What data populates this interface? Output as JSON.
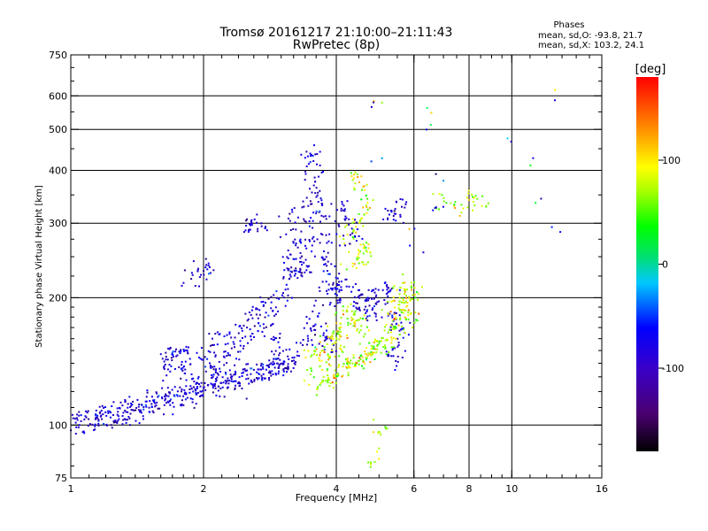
{
  "chart_data": {
    "type": "scatter",
    "title": "Tromsø 20161217 21:10:00–21:11:43",
    "subtitle": "RwPretec (8p)",
    "xlabel": "Frequency [MHz]",
    "ylabel": "Stationary phase Virtual Height [km]",
    "x_scale": "log2",
    "y_scale": "log",
    "xlim": [
      1,
      16
    ],
    "ylim": [
      75,
      750
    ],
    "x_ticks": [
      1,
      2,
      4,
      6,
      8,
      10,
      16
    ],
    "y_ticks": [
      75,
      100,
      200,
      300,
      400,
      500,
      600,
      750
    ],
    "x_gridlines": [
      2,
      4,
      6,
      8,
      10
    ],
    "y_gridlines": [
      100,
      200,
      300,
      400,
      500,
      600
    ],
    "grid": true,
    "stats": {
      "heading": "Phases",
      "line_o": "mean, sd,O: -93.8, 21.7",
      "line_x": "mean, sd,X: 103.2, 24.1"
    },
    "colorbar": {
      "label": "[deg]",
      "min": -180,
      "max": 180,
      "ticks": [
        -100,
        0,
        100
      ],
      "colormap": "rainbow: black-purple-blue-cyan-green-yellow-orange-red"
    },
    "series": [
      {
        "mode": "O",
        "phase_mean": -93.8,
        "phase_sd": 21.7,
        "color": "#2424e0",
        "points": [
          [
            1.02,
            101
          ],
          [
            1.05,
            104
          ],
          [
            1.08,
            99
          ],
          [
            1.1,
            106
          ],
          [
            1.13,
            103
          ],
          [
            1.16,
            101
          ],
          [
            1.19,
            108
          ],
          [
            1.22,
            104
          ],
          [
            1.25,
            102
          ],
          [
            1.28,
            110
          ],
          [
            1.31,
            106
          ],
          [
            1.34,
            104
          ],
          [
            1.37,
            112
          ],
          [
            1.4,
            107
          ],
          [
            1.44,
            109
          ],
          [
            1.48,
            111
          ],
          [
            1.52,
            114
          ],
          [
            1.56,
            110
          ],
          [
            1.6,
            116
          ],
          [
            1.64,
            112
          ],
          [
            1.68,
            118
          ],
          [
            1.72,
            114
          ],
          [
            1.76,
            117
          ],
          [
            1.8,
            121
          ],
          [
            1.84,
            116
          ],
          [
            1.88,
            123
          ],
          [
            1.92,
            119
          ],
          [
            1.96,
            125
          ],
          [
            2.0,
            120
          ],
          [
            2.05,
            127
          ],
          [
            2.1,
            122
          ],
          [
            2.15,
            129
          ],
          [
            2.2,
            124
          ],
          [
            2.25,
            131
          ],
          [
            2.3,
            126
          ],
          [
            2.36,
            132
          ],
          [
            2.42,
            128
          ],
          [
            2.48,
            134
          ],
          [
            2.54,
            129
          ],
          [
            2.6,
            135
          ],
          [
            2.66,
            131
          ],
          [
            2.72,
            137
          ],
          [
            2.78,
            132
          ],
          [
            2.84,
            138
          ],
          [
            2.9,
            134
          ],
          [
            2.96,
            140
          ],
          [
            3.02,
            136
          ],
          [
            3.08,
            142
          ],
          [
            3.14,
            137
          ],
          [
            3.2,
            144
          ],
          [
            1.62,
            138
          ],
          [
            1.66,
            145
          ],
          [
            1.7,
            152
          ],
          [
            1.74,
            141
          ],
          [
            1.78,
            149
          ],
          [
            1.82,
            135
          ],
          [
            1.86,
            143
          ],
          [
            1.9,
            128
          ],
          [
            2.02,
            150
          ],
          [
            2.08,
            143
          ],
          [
            2.14,
            158
          ],
          [
            2.18,
            135
          ],
          [
            2.24,
            147
          ],
          [
            2.3,
            162
          ],
          [
            2.36,
            152
          ],
          [
            2.44,
            172
          ],
          [
            2.5,
            160
          ],
          [
            2.58,
            181
          ],
          [
            2.64,
            168
          ],
          [
            2.7,
            190
          ],
          [
            2.76,
            176
          ],
          [
            2.82,
            198
          ],
          [
            2.88,
            185
          ],
          [
            2.94,
            160
          ],
          [
            3.0,
            150
          ],
          [
            3.05,
            200
          ],
          [
            3.1,
            225
          ],
          [
            3.15,
            250
          ],
          [
            3.2,
            280
          ],
          [
            3.25,
            310
          ],
          [
            3.3,
            265
          ],
          [
            3.35,
            240
          ],
          [
            3.4,
            300
          ],
          [
            3.45,
            330
          ],
          [
            3.5,
            270
          ],
          [
            3.55,
            360
          ],
          [
            3.6,
            390
          ],
          [
            3.52,
            420
          ],
          [
            3.48,
            440
          ],
          [
            3.65,
            340
          ],
          [
            3.7,
            310
          ],
          [
            3.75,
            275
          ],
          [
            3.8,
            250
          ],
          [
            3.85,
            230
          ],
          [
            3.9,
            215
          ],
          [
            3.95,
            205
          ],
          [
            4.0,
            195
          ],
          [
            4.05,
            215
          ],
          [
            4.1,
            210
          ],
          [
            4.15,
            325
          ],
          [
            4.2,
            305
          ],
          [
            4.25,
            290
          ],
          [
            4.3,
            275
          ],
          [
            4.4,
            200
          ],
          [
            4.5,
            195
          ],
          [
            4.6,
            205
          ],
          [
            4.7,
            190
          ],
          [
            4.8,
            185
          ],
          [
            4.9,
            200
          ],
          [
            5.0,
            195
          ],
          [
            5.1,
            205
          ],
          [
            5.2,
            210
          ],
          [
            5.3,
            180
          ],
          [
            5.4,
            175
          ],
          [
            5.5,
            170
          ],
          [
            5.6,
            165
          ],
          [
            5.3,
            145
          ],
          [
            5.45,
            150
          ],
          [
            3.4,
            155
          ],
          [
            3.5,
            170
          ],
          [
            3.6,
            185
          ],
          [
            3.7,
            165
          ],
          [
            3.8,
            160
          ],
          [
            3.9,
            152
          ],
          [
            3.2,
            228
          ],
          [
            3.3,
            232
          ],
          [
            3.4,
            236
          ],
          [
            2.5,
            295
          ],
          [
            2.6,
            300
          ],
          [
            2.7,
            296
          ],
          [
            1.9,
            220
          ],
          [
            2.0,
            230
          ],
          [
            2.05,
            235
          ],
          [
            5.35,
            320
          ],
          [
            5.45,
            310
          ],
          [
            5.55,
            335
          ]
        ]
      },
      {
        "mode": "X",
        "phase_mean": 103.2,
        "phase_sd": 24.1,
        "color": "#ff8c00",
        "points": [
          [
            3.7,
            125
          ],
          [
            3.8,
            128
          ],
          [
            3.9,
            130
          ],
          [
            4.0,
            132
          ],
          [
            4.1,
            134
          ],
          [
            4.2,
            137
          ],
          [
            4.3,
            139
          ],
          [
            4.4,
            141
          ],
          [
            4.5,
            143
          ],
          [
            4.6,
            145
          ],
          [
            4.7,
            147
          ],
          [
            4.8,
            149
          ],
          [
            4.9,
            151
          ],
          [
            5.0,
            153
          ],
          [
            5.1,
            155
          ],
          [
            5.2,
            158
          ],
          [
            5.3,
            162
          ],
          [
            5.4,
            168
          ],
          [
            5.5,
            175
          ],
          [
            5.6,
            182
          ],
          [
            5.7,
            188
          ],
          [
            5.8,
            195
          ],
          [
            5.6,
            205
          ],
          [
            5.7,
            210
          ],
          [
            5.5,
            195
          ],
          [
            5.4,
            185
          ],
          [
            4.4,
            235
          ],
          [
            4.5,
            245
          ],
          [
            4.6,
            255
          ],
          [
            4.7,
            265
          ],
          [
            4.3,
            280
          ],
          [
            4.45,
            295
          ],
          [
            4.55,
            310
          ],
          [
            4.65,
            335
          ],
          [
            4.5,
            365
          ],
          [
            4.35,
            390
          ],
          [
            4.0,
            170
          ],
          [
            4.1,
            165
          ],
          [
            4.2,
            175
          ],
          [
            4.3,
            185
          ],
          [
            4.4,
            180
          ],
          [
            4.5,
            170
          ],
          [
            4.6,
            172
          ],
          [
            6.0,
            180
          ],
          [
            5.9,
            200
          ],
          [
            6.1,
            215
          ],
          [
            5.0,
            98
          ],
          [
            4.95,
            82
          ],
          [
            6.9,
            340
          ],
          [
            7.6,
            330
          ],
          [
            8.1,
            345
          ],
          [
            8.4,
            335
          ],
          [
            3.55,
            150
          ],
          [
            3.6,
            140
          ],
          [
            3.5,
            135
          ],
          [
            3.75,
            145
          ],
          [
            3.85,
            155
          ],
          [
            3.95,
            160
          ],
          [
            4.05,
            155
          ]
        ]
      },
      {
        "mode": "isolated",
        "points": [
          [
            4.9,
            575
          ],
          [
            4.92,
            560
          ],
          [
            6.5,
            535
          ],
          [
            6.5,
            520
          ],
          [
            10.0,
            475
          ],
          [
            11.2,
            400
          ],
          [
            11.4,
            335
          ],
          [
            12.6,
            615
          ],
          [
            12.8,
            288
          ],
          [
            6.8,
            390
          ],
          [
            6.6,
            335
          ],
          [
            6.65,
            328
          ],
          [
            4.95,
            430
          ],
          [
            5.8,
            290
          ],
          [
            6.1,
            260
          ]
        ]
      }
    ]
  }
}
